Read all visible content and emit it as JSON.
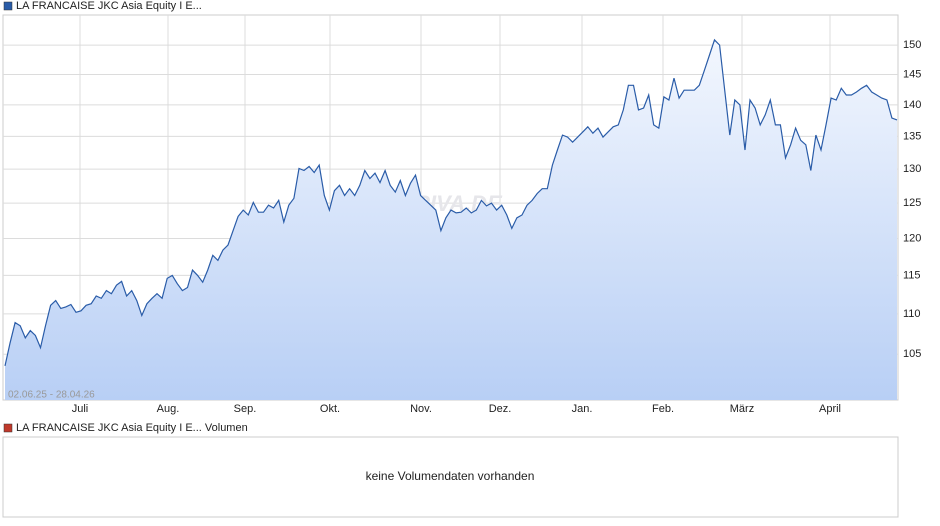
{
  "chart_data": [
    {
      "type": "line",
      "log": true,
      "grid": true,
      "date_range": "02.06.25 - 28.04.26",
      "watermark": "ARIVA.DE",
      "x_axis_labels": [
        "Juli",
        "Aug.",
        "Sep.",
        "Okt.",
        "Nov.",
        "Dez.",
        "Jan.",
        "Feb.",
        "März",
        "April"
      ],
      "ylim": [
        99.6,
        155.3
      ],
      "yticks": [
        105,
        110,
        115,
        120,
        125,
        130,
        135,
        140,
        145,
        150
      ],
      "series": [
        {
          "name": "LA FRANCAISE JKC Asia Equity I E...",
          "color": "#2a5ca8",
          "values": [
            103.6,
            106.4,
            108.9,
            108.5,
            107.0,
            107.9,
            107.3,
            105.8,
            108.5,
            111.1,
            111.7,
            110.7,
            110.9,
            111.2,
            110.2,
            110.4,
            111.1,
            111.3,
            112.3,
            112.0,
            113.0,
            112.6,
            113.7,
            114.2,
            112.3,
            113.0,
            111.7,
            109.8,
            111.3,
            112.0,
            112.6,
            112.0,
            114.6,
            115.0,
            113.9,
            113.0,
            113.4,
            115.7,
            115.0,
            114.1,
            115.7,
            117.7,
            117.0,
            118.4,
            119.1,
            121.1,
            123.1,
            124.0,
            123.3,
            125.1,
            123.7,
            123.7,
            124.7,
            124.3,
            125.4,
            122.3,
            124.7,
            125.7,
            130.1,
            129.8,
            130.4,
            129.5,
            130.6,
            126.1,
            124.0,
            126.8,
            127.6,
            126.1,
            127.1,
            126.1,
            127.6,
            129.8,
            128.6,
            129.4,
            128.0,
            129.8,
            127.6,
            126.6,
            128.3,
            126.1,
            127.9,
            129.1,
            126.1,
            125.4,
            124.7,
            124.0,
            121.1,
            122.9,
            124.0,
            123.6,
            123.7,
            124.3,
            123.6,
            124.0,
            125.4,
            124.6,
            125.0,
            124.0,
            124.7,
            123.3,
            121.4,
            122.9,
            123.3,
            124.7,
            125.4,
            126.4,
            127.1,
            127.1,
            130.6,
            132.9,
            135.2,
            134.9,
            134.1,
            134.9,
            135.7,
            136.5,
            135.5,
            136.3,
            134.9,
            135.7,
            136.5,
            136.8,
            139.2,
            143.2,
            143.2,
            139.2,
            139.5,
            141.6,
            136.8,
            136.3,
            141.3,
            140.8,
            144.4,
            141.1,
            142.4,
            142.4,
            142.4,
            143.2,
            145.7,
            148.3,
            150.9,
            150.0,
            142.4,
            135.2,
            140.8,
            140.0,
            132.9,
            140.8,
            139.5,
            136.8,
            138.4,
            140.8,
            136.8,
            136.8,
            131.7,
            133.7,
            136.3,
            134.4,
            133.7,
            129.8,
            135.2,
            132.9,
            136.8,
            141.1,
            140.8,
            142.7,
            141.6,
            141.6,
            142.1,
            142.7,
            143.2,
            142.1,
            141.6,
            141.1,
            140.8,
            137.9,
            137.6
          ]
        }
      ]
    },
    {
      "type": "empty",
      "message": "keine Volumendaten vorhanden",
      "series": [
        {
          "name": "LA FRANCAISE JKC Asia Equity I E... Volumen",
          "color": "#c0392b"
        }
      ]
    }
  ]
}
